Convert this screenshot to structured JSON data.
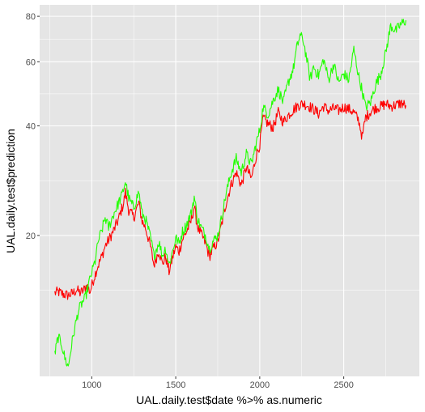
{
  "chart_data": {
    "type": "line",
    "xlabel": "UAL.daily.test$date %>% as.numeric",
    "ylabel": "UAL.daily.test$prediction",
    "y_scale": "log",
    "xlim": [
      690,
      2950
    ],
    "ylim": [
      8.2,
      86
    ],
    "grid": true,
    "legend": "none",
    "x_ticks": [
      1000,
      1500,
      2000,
      2500
    ],
    "y_ticks": [
      20,
      40,
      60,
      80
    ],
    "panel_background": "#e5e5e5",
    "grid_color": "#ffffff",
    "series": [
      {
        "color": "#ff0000",
        "x": [
          780,
          800,
          830,
          860,
          890,
          910,
          930,
          950,
          970,
          990,
          1010,
          1030,
          1060,
          1080,
          1100,
          1130,
          1160,
          1190,
          1200,
          1220,
          1250,
          1280,
          1300,
          1320,
          1350,
          1370,
          1400,
          1420,
          1440,
          1460,
          1480,
          1500,
          1520,
          1540,
          1560,
          1590,
          1610,
          1630,
          1650,
          1680,
          1700,
          1720,
          1750,
          1770,
          1800,
          1830,
          1860,
          1890,
          1920,
          1950,
          1980,
          2000,
          2020,
          2050,
          2080,
          2110,
          2140,
          2170,
          2200,
          2230,
          2260,
          2290,
          2320,
          2350,
          2380,
          2410,
          2440,
          2470,
          2500,
          2530,
          2560,
          2590,
          2610,
          2630,
          2660,
          2690,
          2720,
          2750,
          2780,
          2810,
          2840,
          2870
        ],
        "y": [
          13.9,
          14.0,
          13.8,
          13.7,
          13.9,
          14.2,
          13.9,
          14.1,
          14.6,
          14.0,
          15.1,
          16.2,
          17.5,
          18.7,
          19.4,
          20.6,
          22.2,
          24.6,
          26.3,
          23.5,
          22.4,
          24.6,
          21.9,
          21.0,
          18.6,
          16.6,
          18.2,
          16.7,
          17.5,
          15.9,
          17.3,
          18.6,
          18.1,
          19.5,
          20.3,
          21.8,
          24.0,
          21.1,
          20.2,
          18.9,
          17.5,
          18.3,
          19.2,
          21.1,
          24.6,
          27.6,
          29.8,
          27.5,
          30.8,
          28.6,
          33.3,
          35.5,
          42.0,
          40.5,
          39.6,
          43.5,
          41.0,
          42.8,
          44.3,
          45.6,
          46.1,
          45.4,
          44.5,
          43.2,
          45.3,
          44.0,
          44.7,
          44.1,
          45.1,
          44.5,
          43.6,
          41.3,
          37.2,
          42.2,
          43.8,
          44.9,
          45.2,
          46.0,
          45.3,
          45.6,
          46.2,
          45.5
        ]
      },
      {
        "color": "#22ff00",
        "x": [
          780,
          790,
          800,
          820,
          840,
          860,
          880,
          900,
          920,
          940,
          960,
          980,
          1000,
          1020,
          1040,
          1060,
          1080,
          1100,
          1130,
          1160,
          1180,
          1200,
          1220,
          1250,
          1280,
          1300,
          1320,
          1350,
          1370,
          1400,
          1420,
          1440,
          1460,
          1480,
          1500,
          1520,
          1540,
          1560,
          1590,
          1610,
          1630,
          1650,
          1680,
          1700,
          1720,
          1750,
          1770,
          1800,
          1830,
          1860,
          1890,
          1920,
          1950,
          1980,
          2000,
          2020,
          2050,
          2080,
          2110,
          2140,
          2170,
          2200,
          2220,
          2240,
          2260,
          2280,
          2300,
          2320,
          2350,
          2380,
          2410,
          2440,
          2470,
          2500,
          2530,
          2560,
          2590,
          2610,
          2630,
          2660,
          2690,
          2720,
          2750,
          2780,
          2810,
          2840,
          2870
        ],
        "y": [
          9.4,
          10.0,
          10.5,
          10.1,
          9.2,
          8.7,
          10.0,
          11.2,
          12.4,
          13.0,
          13.4,
          14.6,
          15.8,
          17.0,
          19.4,
          20.6,
          22.4,
          21.0,
          22.9,
          24.6,
          25.8,
          28.2,
          25.3,
          23.8,
          26.4,
          22.9,
          22.2,
          19.7,
          17.6,
          19.2,
          17.6,
          18.5,
          16.6,
          18.0,
          19.7,
          19.0,
          20.5,
          21.2,
          22.9,
          25.5,
          22.2,
          21.1,
          19.9,
          18.4,
          19.2,
          20.0,
          22.0,
          26.1,
          29.8,
          32.5,
          29.8,
          33.5,
          31.3,
          36.0,
          38.9,
          45.0,
          43.0,
          47.0,
          50.4,
          46.4,
          52.7,
          57.5,
          65.2,
          71.0,
          68.5,
          61.0,
          53.6,
          58.2,
          55.0,
          61.0,
          53.6,
          59.2,
          52.5,
          55.7,
          53.4,
          64.9,
          54.5,
          50.0,
          45.0,
          46.5,
          52.0,
          55.5,
          63.6,
          75.5,
          73.0,
          76.0,
          78.0
        ]
      }
    ]
  }
}
